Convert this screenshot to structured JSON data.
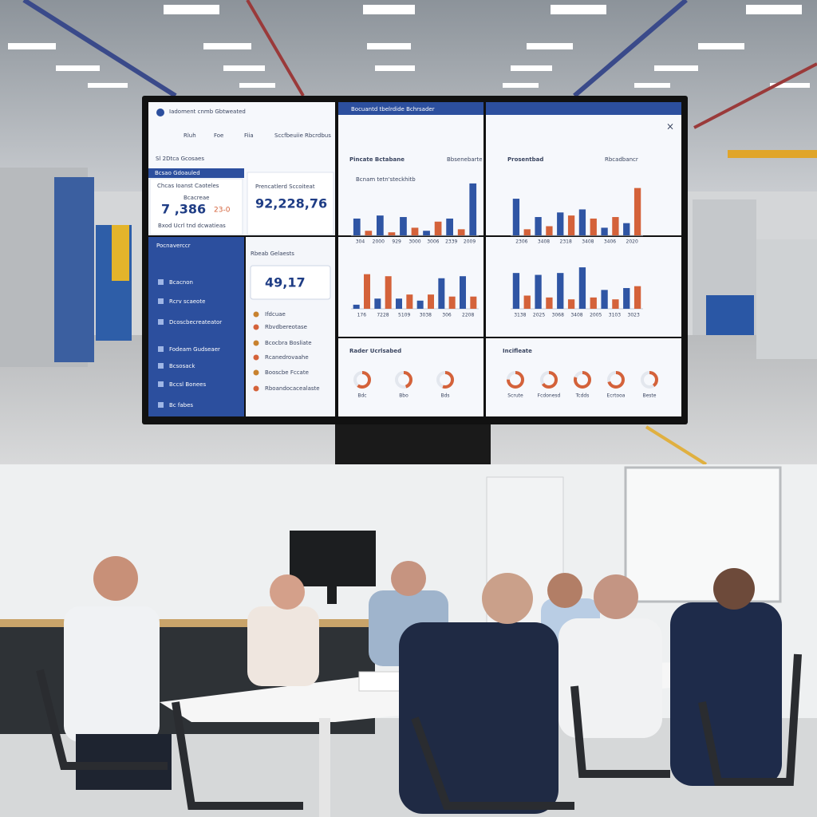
{
  "screen": {
    "window_title": "Iadoment cnmb Gbtweated",
    "toolbar": [
      "Rluh",
      "Foe",
      "Fiia",
      "Sccfbeuiie",
      "Rbcrdbus"
    ],
    "section_title": "Sl 2Dtca Gcosaes",
    "tab": "Bcsao Gdoauled",
    "kpi1": {
      "label": "Chcas Ioanst Caoteles",
      "sublabel": "Bcacreae",
      "value": "7 ,386",
      "delta": "23-0",
      "note": "Bxod Ucrl tnd dcwatieas"
    },
    "kpi2": {
      "label": "Prencatlerd Sccoiteat",
      "value": "92,228,76"
    },
    "kpi3": {
      "label": "Rbeab Gelaests",
      "value": "49,17"
    },
    "nav": {
      "title": "Pocnaverccr",
      "items": [
        "Bcacnon",
        "Rcrv scaeote",
        "Dcoscbecreateator",
        "Fodeam Gudseaer",
        "Bcsosack",
        "Bccsl Bonees",
        "Bc fabes"
      ]
    },
    "list": [
      "Ifdcuae",
      "Rbvdbereotase",
      "Bcocbra Bosliate",
      "Rcanedrovaahe",
      "Booscbe Fccate",
      "Rboandocacealaste"
    ],
    "header2": "Bocuantd tbelrdide Bchrsader",
    "panel_titles": [
      {
        "title": "Pincate Bctabane",
        "tag": "Bbsenebarte"
      },
      {
        "title": "Prosentbad",
        "tag": "Rbcadbancr"
      }
    ],
    "colors": [
      "#2f55a4",
      "#d4623a"
    ],
    "charts": [
      {
        "subtitle": "Bcnam tetn'steckhitb",
        "ylim": [
          0,
          70
        ],
        "values": [
          22,
          6,
          26,
          4,
          24,
          10,
          6,
          18,
          22,
          8,
          68
        ],
        "x_labels": [
          "304",
          "2000",
          "929",
          "3000",
          "3006",
          "2339",
          "2009"
        ]
      },
      {
        "ylim": [
          0,
          70
        ],
        "values": [
          48,
          8,
          24,
          12,
          30,
          26,
          34,
          22,
          10,
          24,
          16,
          62
        ],
        "x_labels": [
          "2306",
          "3408",
          "2318",
          "3408",
          "3406",
          "2020"
        ]
      },
      {
        "ylim": [
          0,
          40
        ],
        "values": [
          4,
          34,
          10,
          32,
          10,
          14,
          8,
          14,
          30,
          12,
          32,
          12
        ],
        "x_labels": [
          "176",
          "7228",
          "5109",
          "3038",
          "306",
          "2208"
        ]
      },
      {
        "ylim": [
          0,
          50
        ],
        "values": [
          38,
          14,
          36,
          12,
          38,
          10,
          44,
          12,
          20,
          10,
          22,
          24
        ],
        "x_labels": [
          "3138",
          "2025",
          "3068",
          "3408",
          "2005",
          "3103",
          "3023"
        ]
      }
    ],
    "gauges_a": {
      "title": "Rader Ucrlsabed",
      "labels": [
        "Bdc",
        "Bbo",
        "Bds"
      ],
      "values": [
        60,
        45,
        55
      ]
    },
    "gauges_b": {
      "title": "Incifleate",
      "labels": [
        "Scrute",
        "Fcdonesd",
        "Tcdds",
        "Ecrtooa",
        "Beste"
      ],
      "values": [
        75,
        65,
        80,
        70,
        40
      ]
    }
  }
}
